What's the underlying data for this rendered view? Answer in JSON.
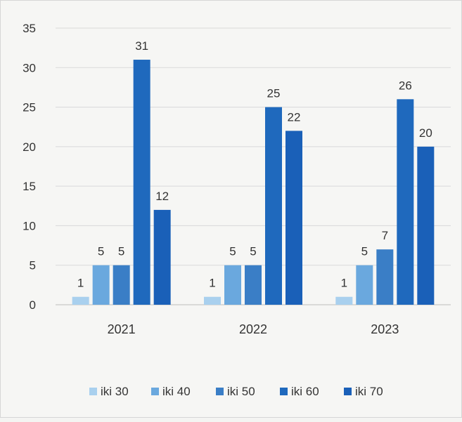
{
  "chart_data": {
    "type": "bar",
    "categories": [
      "2021",
      "2022",
      "2023"
    ],
    "series": [
      {
        "name": "iki 30",
        "values": [
          1,
          1,
          1
        ],
        "color": "#a9d0ee"
      },
      {
        "name": "iki 40",
        "values": [
          5,
          5,
          5
        ],
        "color": "#6aa8de"
      },
      {
        "name": "iki 50",
        "values": [
          5,
          5,
          7
        ],
        "color": "#3a7ec6"
      },
      {
        "name": "iki 60",
        "values": [
          31,
          25,
          26
        ],
        "color": "#1f69bd"
      },
      {
        "name": "iki 70",
        "values": [
          12,
          22,
          20
        ],
        "color": "#1a60b8"
      }
    ],
    "ylim": [
      0,
      35
    ],
    "yticks": [
      0,
      5,
      10,
      15,
      20,
      25,
      30,
      35
    ],
    "grid": true,
    "legend_position": "bottom",
    "data_labels": true
  }
}
